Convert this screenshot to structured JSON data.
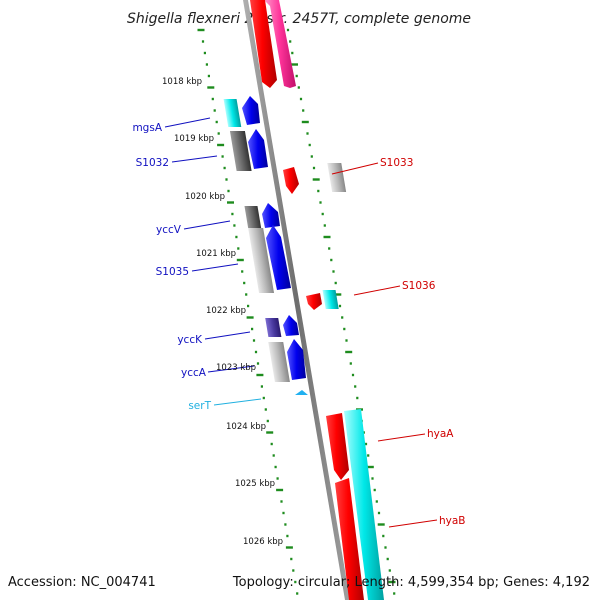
{
  "title": "Shigella flexneri 2a str. 2457T, complete genome",
  "footer": {
    "accession": "Accession: NC_004741",
    "topology": "Topology: circular; Length: 4,599,354 bp; Genes: 4,192"
  },
  "kbp_ticks": [
    "1018 kbp",
    "1019 kbp",
    "1020 kbp",
    "1021 kbp",
    "1022 kbp",
    "1023 kbp",
    "1024 kbp",
    "1025 kbp",
    "1026 kbp"
  ],
  "colors": {
    "backbone": "#8a8a8a",
    "tick_green": "#1e8c1e",
    "plus_strand_label": "#1010c0",
    "minus_strand_label": "#d00000",
    "trna_label": "#20b0e0",
    "cds_red": "#ff0000",
    "cds_pink": "#ff3399",
    "cds_cyan": "#00e8e8",
    "cds_blue": "#0000ee",
    "cds_grey": "#bbbbbb",
    "cds_darkgrey": "#666666",
    "cds_navy": "#4a3aa0"
  },
  "gene_labels": {
    "left": [
      "mgsA",
      "S1032",
      "yccV",
      "S1035",
      "yccK",
      "yccA",
      "serT"
    ],
    "right": [
      "S1033",
      "S1036",
      "hyaA",
      "hyaB"
    ]
  }
}
